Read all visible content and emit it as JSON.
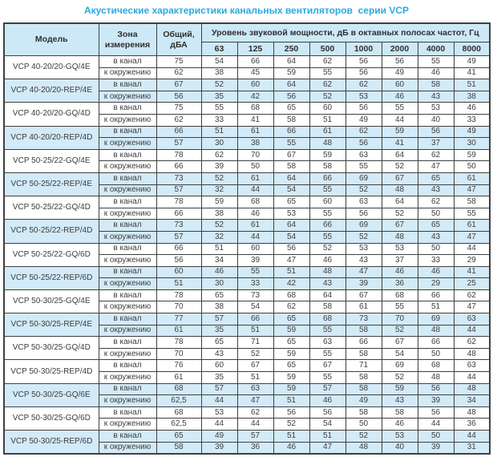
{
  "title": "Акустические характеристики канальных вентиляторов  серии VCP",
  "colors": {
    "title_accent": "#2ba9e0",
    "header_bg": "#cde9f7",
    "shaded_row_bg": "#d3eaf8",
    "border": "#404040",
    "text": "#3f3f3f"
  },
  "table": {
    "header": {
      "model": "Модель",
      "zone": "Зона измерения",
      "total": "Общий, дБА",
      "band_group": "Уровень звуковой мощности, дБ в октавных полосах частот, Гц",
      "frequencies": [
        "63",
        "125",
        "250",
        "500",
        "1000",
        "2000",
        "4000",
        "8000"
      ]
    },
    "zone_in_duct": "в канал",
    "zone_ambient": "к окружению",
    "groups": [
      {
        "model": "VCP 40-20/20-GQ/4E",
        "shaded": false,
        "in_duct": {
          "total": "75",
          "bands": [
            54,
            66,
            64,
            62,
            56,
            56,
            55,
            49
          ]
        },
        "ambient": {
          "total": "62",
          "bands": [
            38,
            45,
            59,
            55,
            56,
            49,
            46,
            41
          ]
        }
      },
      {
        "model": "VCP 40-20/20-REP/4E",
        "shaded": true,
        "in_duct": {
          "total": "67",
          "bands": [
            52,
            60,
            64,
            62,
            62,
            60,
            58,
            51
          ]
        },
        "ambient": {
          "total": "56",
          "bands": [
            35,
            42,
            56,
            52,
            53,
            46,
            43,
            38
          ]
        }
      },
      {
        "model": "VCP 40-20/20-GQ/4D",
        "shaded": false,
        "in_duct": {
          "total": "75",
          "bands": [
            55,
            68,
            65,
            60,
            56,
            55,
            53,
            46
          ]
        },
        "ambient": {
          "total": "62",
          "bands": [
            33,
            41,
            58,
            51,
            49,
            44,
            40,
            33
          ]
        }
      },
      {
        "model": "VCP 40-20/20-REP/4D",
        "shaded": true,
        "in_duct": {
          "total": "66",
          "bands": [
            51,
            61,
            66,
            61,
            62,
            59,
            56,
            49
          ]
        },
        "ambient": {
          "total": "57",
          "bands": [
            30,
            38,
            55,
            48,
            56,
            41,
            37,
            30
          ]
        }
      },
      {
        "model": "VCP 50-25/22-GQ/4E",
        "shaded": false,
        "in_duct": {
          "total": "78",
          "bands": [
            62,
            70,
            67,
            59,
            63,
            64,
            62,
            59
          ]
        },
        "ambient": {
          "total": "66",
          "bands": [
            39,
            50,
            58,
            58,
            55,
            52,
            47,
            50
          ]
        }
      },
      {
        "model": "VCP 50-25/22-REP/4E",
        "shaded": true,
        "in_duct": {
          "total": "73",
          "bands": [
            52,
            61,
            64,
            66,
            69,
            67,
            65,
            61
          ]
        },
        "ambient": {
          "total": "57",
          "bands": [
            32,
            44,
            54,
            55,
            52,
            48,
            43,
            47
          ]
        }
      },
      {
        "model": "VCP 50-25/22-GQ/4D",
        "shaded": false,
        "in_duct": {
          "total": "78",
          "bands": [
            59,
            68,
            65,
            60,
            63,
            64,
            62,
            58
          ]
        },
        "ambient": {
          "total": "66",
          "bands": [
            38,
            46,
            53,
            55,
            56,
            52,
            50,
            55
          ]
        }
      },
      {
        "model": "VCP 50-25/22-REP/4D",
        "shaded": true,
        "in_duct": {
          "total": "73",
          "bands": [
            52,
            61,
            64,
            66,
            69,
            67,
            65,
            61
          ]
        },
        "ambient": {
          "total": "57",
          "bands": [
            32,
            44,
            54,
            55,
            52,
            48,
            43,
            47
          ]
        }
      },
      {
        "model": "VCP 50-25/22-GQ/6D",
        "shaded": false,
        "in_duct": {
          "total": "66",
          "bands": [
            51,
            60,
            56,
            52,
            53,
            53,
            50,
            44
          ]
        },
        "ambient": {
          "total": "56",
          "bands": [
            34,
            39,
            47,
            46,
            43,
            37,
            33,
            29
          ]
        }
      },
      {
        "model": "VCP 50-25/22-REP/6D",
        "shaded": true,
        "in_duct": {
          "total": "60",
          "bands": [
            46,
            55,
            51,
            48,
            47,
            46,
            46,
            41
          ]
        },
        "ambient": {
          "total": "51",
          "bands": [
            30,
            33,
            42,
            43,
            39,
            36,
            29,
            25
          ]
        }
      },
      {
        "model": "VCP 50-30/25-GQ/4E",
        "shaded": false,
        "in_duct": {
          "total": "78",
          "bands": [
            65,
            73,
            68,
            64,
            67,
            68,
            66,
            62
          ]
        },
        "ambient": {
          "total": "70",
          "bands": [
            38,
            54,
            62,
            58,
            61,
            55,
            51,
            47
          ]
        }
      },
      {
        "model": "VCP 50-30/25-REP/4E",
        "shaded": true,
        "in_duct": {
          "total": "77",
          "bands": [
            57,
            66,
            65,
            68,
            73,
            70,
            69,
            63
          ]
        },
        "ambient": {
          "total": "61",
          "bands": [
            35,
            51,
            59,
            55,
            58,
            52,
            48,
            44
          ]
        }
      },
      {
        "model": "VCP 50-30/25-GQ/4D",
        "shaded": false,
        "in_duct": {
          "total": "78",
          "bands": [
            65,
            71,
            65,
            63,
            66,
            67,
            66,
            62
          ]
        },
        "ambient": {
          "total": "70",
          "bands": [
            43,
            52,
            59,
            55,
            58,
            54,
            50,
            48
          ]
        }
      },
      {
        "model": "VCP 50-30/25-REP/4D",
        "shaded": false,
        "in_duct": {
          "total": "76",
          "bands": [
            60,
            67,
            65,
            67,
            71,
            69,
            68,
            63
          ]
        },
        "ambient": {
          "total": "61",
          "bands": [
            35,
            51,
            59,
            55,
            58,
            52,
            48,
            44
          ]
        }
      },
      {
        "model": "VCP 50-30/25-GQ/6E",
        "shaded": true,
        "in_duct": {
          "total": "68",
          "bands": [
            57,
            63,
            59,
            57,
            58,
            59,
            56,
            48
          ]
        },
        "ambient": {
          "total": "62,5",
          "bands": [
            44,
            47,
            51,
            46,
            49,
            43,
            39,
            34
          ]
        }
      },
      {
        "model": "VCP 50-30/25-GQ/6D",
        "shaded": false,
        "in_duct": {
          "total": "68",
          "bands": [
            53,
            62,
            56,
            56,
            58,
            58,
            56,
            48
          ]
        },
        "ambient": {
          "total": "62,5",
          "bands": [
            44,
            44,
            52,
            54,
            50,
            46,
            44,
            36
          ]
        }
      },
      {
        "model": "VCP 50-30/25-REP/6D",
        "shaded": true,
        "in_duct": {
          "total": "65",
          "bands": [
            49,
            57,
            51,
            51,
            52,
            53,
            50,
            44
          ]
        },
        "ambient": {
          "total": "58",
          "bands": [
            39,
            36,
            46,
            47,
            48,
            40,
            39,
            31
          ]
        }
      }
    ]
  }
}
